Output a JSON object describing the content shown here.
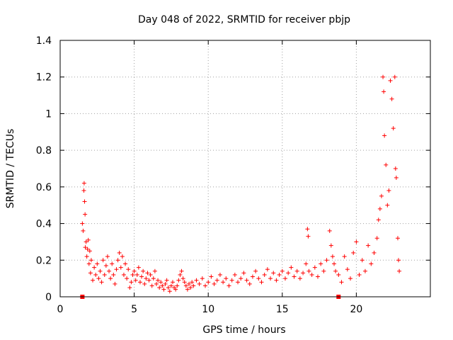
{
  "chart_data": {
    "type": "scatter",
    "title": "Day 048 of 2022, SRMTID for receiver pbjp",
    "xlabel": "GPS time / hours",
    "ylabel": "SRMTID / TECUs",
    "xlim": [
      0,
      25
    ],
    "ylim": [
      0,
      1.4
    ],
    "xticks": [
      0,
      5,
      10,
      15,
      20
    ],
    "xtick_labels": [
      "0",
      "5",
      "10",
      "15",
      "20"
    ],
    "yticks": [
      0,
      0.2,
      0.4,
      0.6,
      0.8,
      1.0,
      1.2,
      1.4
    ],
    "ytick_labels": [
      "0",
      "0.2",
      "0.4",
      "0.6",
      "0.8",
      "1",
      "1.2",
      "1.4"
    ],
    "grid": true,
    "marker": "plus",
    "color": "#ff0000",
    "series": [
      {
        "name": "SRMTID",
        "points": [
          [
            1.5,
            0.4
          ],
          [
            1.55,
            0.36
          ],
          [
            1.6,
            0.58
          ],
          [
            1.62,
            0.62
          ],
          [
            1.65,
            0.52
          ],
          [
            1.68,
            0.45
          ],
          [
            1.7,
            0.27
          ],
          [
            1.75,
            0.3
          ],
          [
            1.8,
            0.22
          ],
          [
            1.85,
            0.26
          ],
          [
            1.9,
            0.31
          ],
          [
            1.95,
            0.18
          ],
          [
            2.0,
            0.25
          ],
          [
            2.05,
            0.13
          ],
          [
            2.1,
            0.2
          ],
          [
            2.2,
            0.09
          ],
          [
            2.3,
            0.16
          ],
          [
            2.4,
            0.12
          ],
          [
            2.5,
            0.18
          ],
          [
            2.6,
            0.1
          ],
          [
            2.7,
            0.14
          ],
          [
            2.8,
            0.08
          ],
          [
            2.9,
            0.2
          ],
          [
            3.0,
            0.12
          ],
          [
            3.1,
            0.17
          ],
          [
            3.2,
            0.22
          ],
          [
            3.3,
            0.14
          ],
          [
            3.4,
            0.1
          ],
          [
            3.5,
            0.18
          ],
          [
            3.6,
            0.12
          ],
          [
            3.7,
            0.07
          ],
          [
            3.8,
            0.15
          ],
          [
            3.9,
            0.2
          ],
          [
            4.0,
            0.24
          ],
          [
            4.1,
            0.16
          ],
          [
            4.2,
            0.22
          ],
          [
            4.3,
            0.12
          ],
          [
            4.4,
            0.18
          ],
          [
            4.5,
            0.1
          ],
          [
            4.6,
            0.15
          ],
          [
            4.7,
            0.05
          ],
          [
            4.8,
            0.08
          ],
          [
            4.9,
            0.12
          ],
          [
            5.0,
            0.14
          ],
          [
            5.1,
            0.09
          ],
          [
            5.2,
            0.12
          ],
          [
            5.3,
            0.16
          ],
          [
            5.4,
            0.08
          ],
          [
            5.5,
            0.11
          ],
          [
            5.6,
            0.14
          ],
          [
            5.7,
            0.07
          ],
          [
            5.8,
            0.1
          ],
          [
            5.9,
            0.13
          ],
          [
            6.0,
            0.09
          ],
          [
            6.1,
            0.12
          ],
          [
            6.2,
            0.06
          ],
          [
            6.3,
            0.1
          ],
          [
            6.4,
            0.14
          ],
          [
            6.5,
            0.07
          ],
          [
            6.6,
            0.09
          ],
          [
            6.7,
            0.05
          ],
          [
            6.8,
            0.08
          ],
          [
            6.9,
            0.06
          ],
          [
            7.0,
            0.04
          ],
          [
            7.1,
            0.07
          ],
          [
            7.2,
            0.09
          ],
          [
            7.3,
            0.05
          ],
          [
            7.4,
            0.03
          ],
          [
            7.5,
            0.06
          ],
          [
            7.6,
            0.08
          ],
          [
            7.7,
            0.05
          ],
          [
            7.8,
            0.04
          ],
          [
            7.9,
            0.06
          ],
          [
            8.0,
            0.09
          ],
          [
            8.1,
            0.12
          ],
          [
            8.2,
            0.14
          ],
          [
            8.3,
            0.1
          ],
          [
            8.4,
            0.08
          ],
          [
            8.5,
            0.06
          ],
          [
            8.6,
            0.04
          ],
          [
            8.7,
            0.07
          ],
          [
            8.8,
            0.05
          ],
          [
            8.9,
            0.08
          ],
          [
            9.0,
            0.06
          ],
          [
            9.2,
            0.09
          ],
          [
            9.4,
            0.07
          ],
          [
            9.6,
            0.1
          ],
          [
            9.8,
            0.06
          ],
          [
            10.0,
            0.08
          ],
          [
            10.2,
            0.11
          ],
          [
            10.4,
            0.07
          ],
          [
            10.6,
            0.09
          ],
          [
            10.8,
            0.12
          ],
          [
            11.0,
            0.08
          ],
          [
            11.2,
            0.1
          ],
          [
            11.4,
            0.06
          ],
          [
            11.6,
            0.09
          ],
          [
            11.8,
            0.12
          ],
          [
            12.0,
            0.08
          ],
          [
            12.2,
            0.1
          ],
          [
            12.4,
            0.13
          ],
          [
            12.6,
            0.09
          ],
          [
            12.8,
            0.07
          ],
          [
            13.0,
            0.11
          ],
          [
            13.2,
            0.14
          ],
          [
            13.4,
            0.1
          ],
          [
            13.6,
            0.08
          ],
          [
            13.8,
            0.12
          ],
          [
            14.0,
            0.15
          ],
          [
            14.2,
            0.1
          ],
          [
            14.4,
            0.13
          ],
          [
            14.6,
            0.09
          ],
          [
            14.8,
            0.12
          ],
          [
            15.0,
            0.14
          ],
          [
            15.2,
            0.1
          ],
          [
            15.4,
            0.13
          ],
          [
            15.6,
            0.16
          ],
          [
            15.8,
            0.11
          ],
          [
            16.0,
            0.14
          ],
          [
            16.2,
            0.1
          ],
          [
            16.4,
            0.13
          ],
          [
            16.6,
            0.18
          ],
          [
            16.7,
            0.37
          ],
          [
            16.75,
            0.33
          ],
          [
            16.8,
            0.14
          ],
          [
            17.0,
            0.12
          ],
          [
            17.2,
            0.16
          ],
          [
            17.4,
            0.11
          ],
          [
            17.6,
            0.18
          ],
          [
            17.8,
            0.14
          ],
          [
            18.0,
            0.2
          ],
          [
            18.2,
            0.36
          ],
          [
            18.3,
            0.28
          ],
          [
            18.4,
            0.22
          ],
          [
            18.5,
            0.18
          ],
          [
            18.6,
            0.14
          ],
          [
            18.8,
            0.12
          ],
          [
            19.0,
            0.08
          ],
          [
            19.2,
            0.22
          ],
          [
            19.4,
            0.15
          ],
          [
            19.6,
            0.1
          ],
          [
            19.8,
            0.24
          ],
          [
            20.0,
            0.3
          ],
          [
            20.2,
            0.12
          ],
          [
            20.4,
            0.2
          ],
          [
            20.6,
            0.14
          ],
          [
            20.8,
            0.28
          ],
          [
            21.0,
            0.18
          ],
          [
            21.2,
            0.24
          ],
          [
            21.4,
            0.32
          ],
          [
            21.5,
            0.42
          ],
          [
            21.6,
            0.48
          ],
          [
            21.7,
            0.55
          ],
          [
            21.8,
            1.2
          ],
          [
            21.85,
            1.12
          ],
          [
            21.9,
            0.88
          ],
          [
            22.0,
            0.72
          ],
          [
            22.1,
            0.5
          ],
          [
            22.2,
            0.58
          ],
          [
            22.3,
            1.18
          ],
          [
            22.4,
            1.08
          ],
          [
            22.5,
            0.92
          ],
          [
            22.6,
            1.2
          ],
          [
            22.65,
            0.7
          ],
          [
            22.7,
            0.65
          ],
          [
            22.8,
            0.32
          ],
          [
            22.85,
            0.2
          ],
          [
            22.9,
            0.14
          ]
        ]
      }
    ],
    "zero_markers": [
      1.5,
      18.8
    ]
  }
}
